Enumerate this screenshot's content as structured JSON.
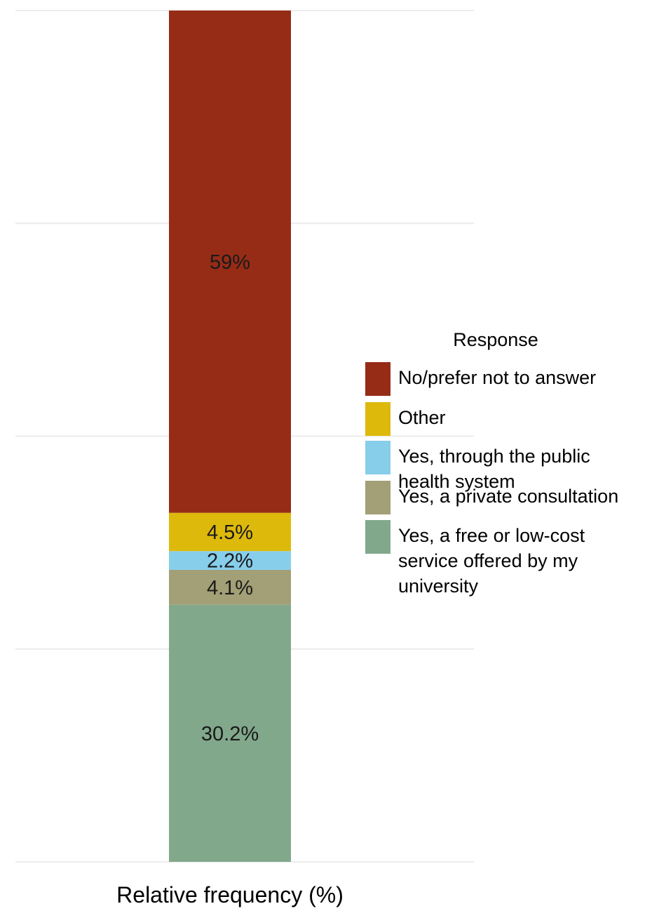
{
  "chart_data": {
    "type": "bar",
    "stacked": true,
    "orientation": "vertical",
    "xlabel": "Relative frequency (%)",
    "ylabel": "",
    "ylim": [
      0,
      100
    ],
    "grid": true,
    "legend": {
      "title": "Response",
      "placement": "right"
    },
    "series": [
      {
        "name": "Yes, a free or low-cost service offered by my university",
        "value": 30.2,
        "label": "30.2%",
        "color": "#82a88c"
      },
      {
        "name": "Yes, a private consultation",
        "value": 4.1,
        "label": "4.1%",
        "color": "#a39f76"
      },
      {
        "name": "Yes, through the public health system",
        "value": 2.2,
        "label": "2.2%",
        "color": "#87ceeb"
      },
      {
        "name": "Other",
        "value": 4.5,
        "label": "4.5%",
        "color": "#ddb90c"
      },
      {
        "name": "No/prefer not to answer",
        "value": 59,
        "label": "59%",
        "color": "#962c16"
      }
    ],
    "legend_items": [
      {
        "lines": [
          "No/prefer not to answer"
        ],
        "color": "#962c16"
      },
      {
        "lines": [
          "Other"
        ],
        "color": "#ddb90c"
      },
      {
        "lines": [
          "Yes, through the public",
          "health system"
        ],
        "color": "#87ceeb"
      },
      {
        "lines": [
          "Yes, a private consultation"
        ],
        "color": "#a39f76"
      },
      {
        "lines": [
          "Yes, a free or low-cost",
          "service offered by my",
          "university"
        ],
        "color": "#82a88c"
      }
    ]
  }
}
